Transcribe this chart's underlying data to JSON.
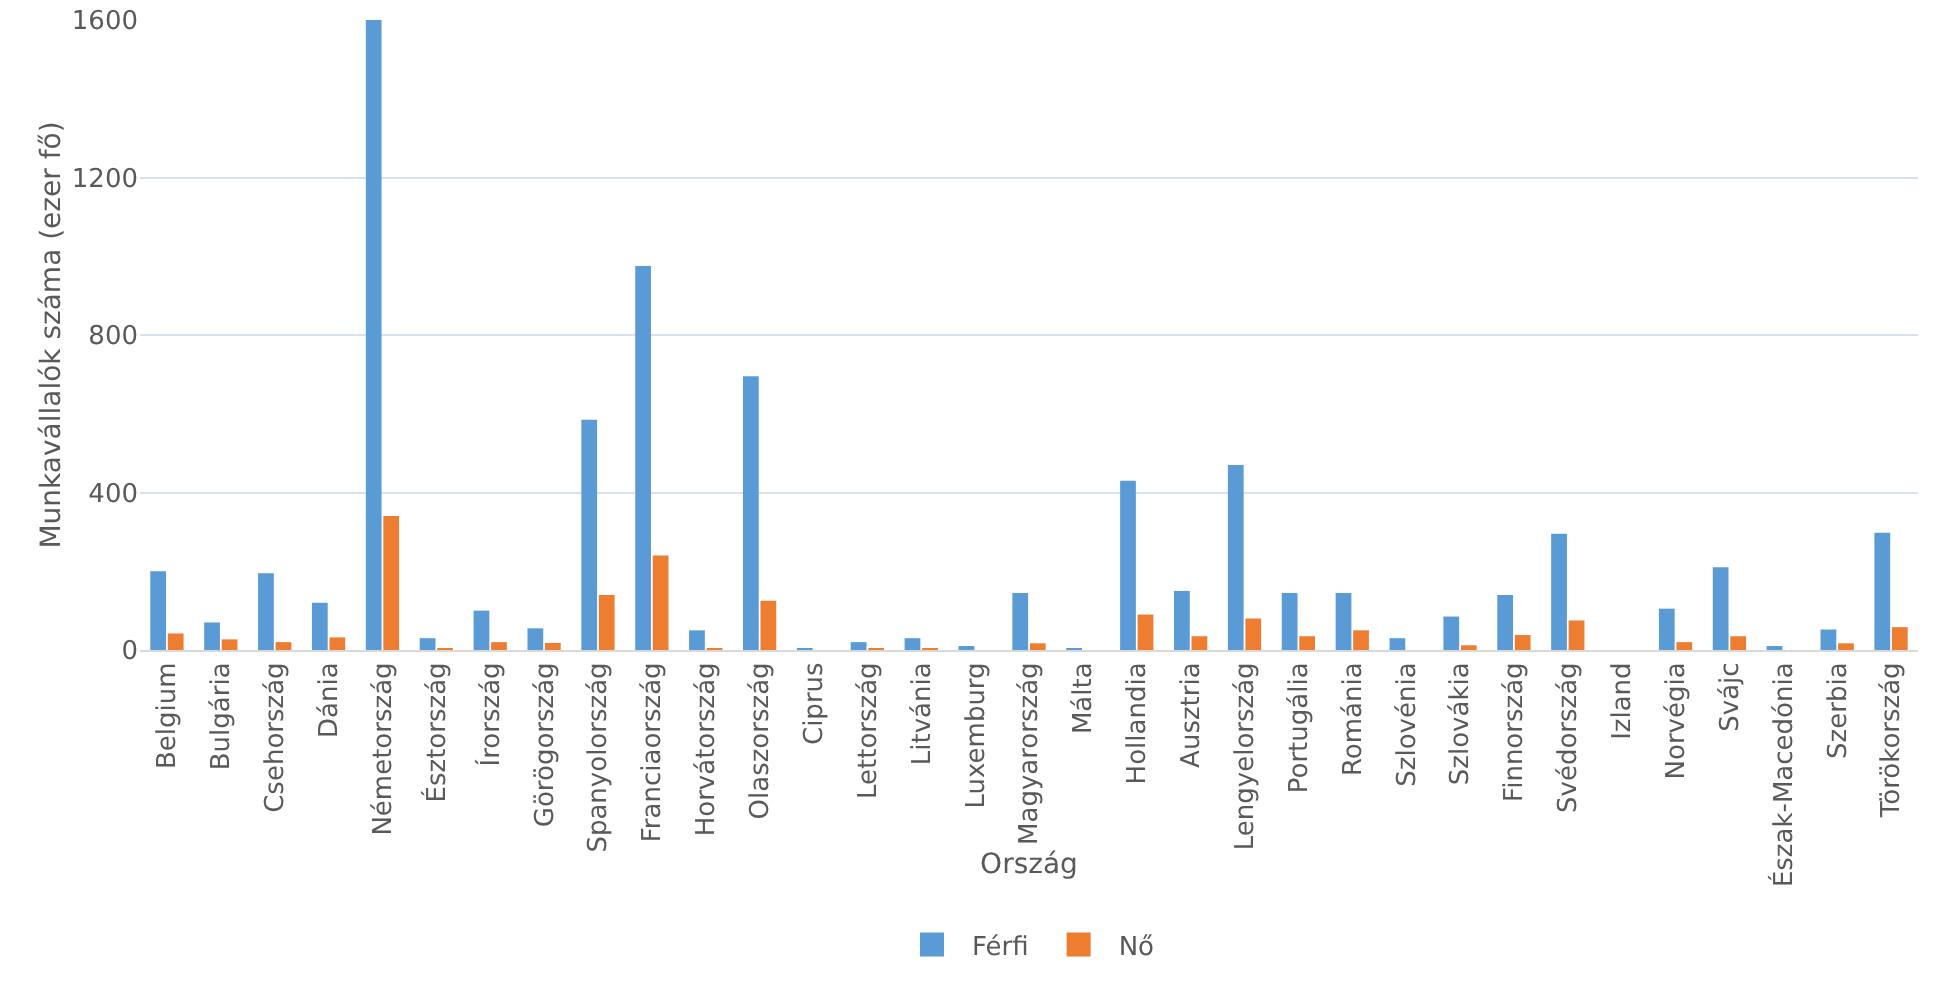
{
  "chart_data": {
    "type": "bar",
    "xlabel": "Ország",
    "ylabel": "Munkavállalók száma (ezer fő)",
    "categories": [
      "Belgium",
      "Bulgária",
      "Csehország",
      "Dánia",
      "Németország",
      "Észtország",
      "Írország",
      "Görögország",
      "Spanyolország",
      "Franciaország",
      "Horvátország",
      "Olaszország",
      "Ciprus",
      "Lettország",
      "Litvánia",
      "Luxemburg",
      "Magyarország",
      "Málta",
      "Hollandia",
      "Ausztria",
      "Lengyelország",
      "Portugália",
      "Románia",
      "Szlovénia",
      "Szlovákia",
      "Finnország",
      "Svédország",
      "Izland",
      "Norvégia",
      "Svájc",
      "Észak-Macedónia",
      "Szerbia",
      "Törökország"
    ],
    "series": [
      {
        "name": "Férfi",
        "color": "#5b9bd5",
        "values": [
          200,
          70,
          195,
          120,
          1600,
          30,
          100,
          55,
          585,
          975,
          50,
          695,
          5,
          20,
          30,
          10,
          145,
          5,
          430,
          150,
          470,
          145,
          145,
          30,
          85,
          140,
          295,
          0,
          105,
          210,
          8,
          52,
          298
        ]
      },
      {
        "name": "Nő",
        "color": "#ed7d31",
        "values": [
          42,
          27,
          20,
          32,
          340,
          5,
          20,
          18,
          140,
          240,
          5,
          125,
          0,
          2,
          5,
          0,
          17,
          0,
          90,
          35,
          80,
          35,
          50,
          0,
          12,
          38,
          75,
          0,
          20,
          35,
          0,
          17,
          58
        ]
      }
    ],
    "ylim": [
      0,
      1600
    ],
    "yticks": [
      0,
      400,
      800,
      1200,
      1600
    ],
    "grid": "y",
    "legend": "bottom"
  }
}
